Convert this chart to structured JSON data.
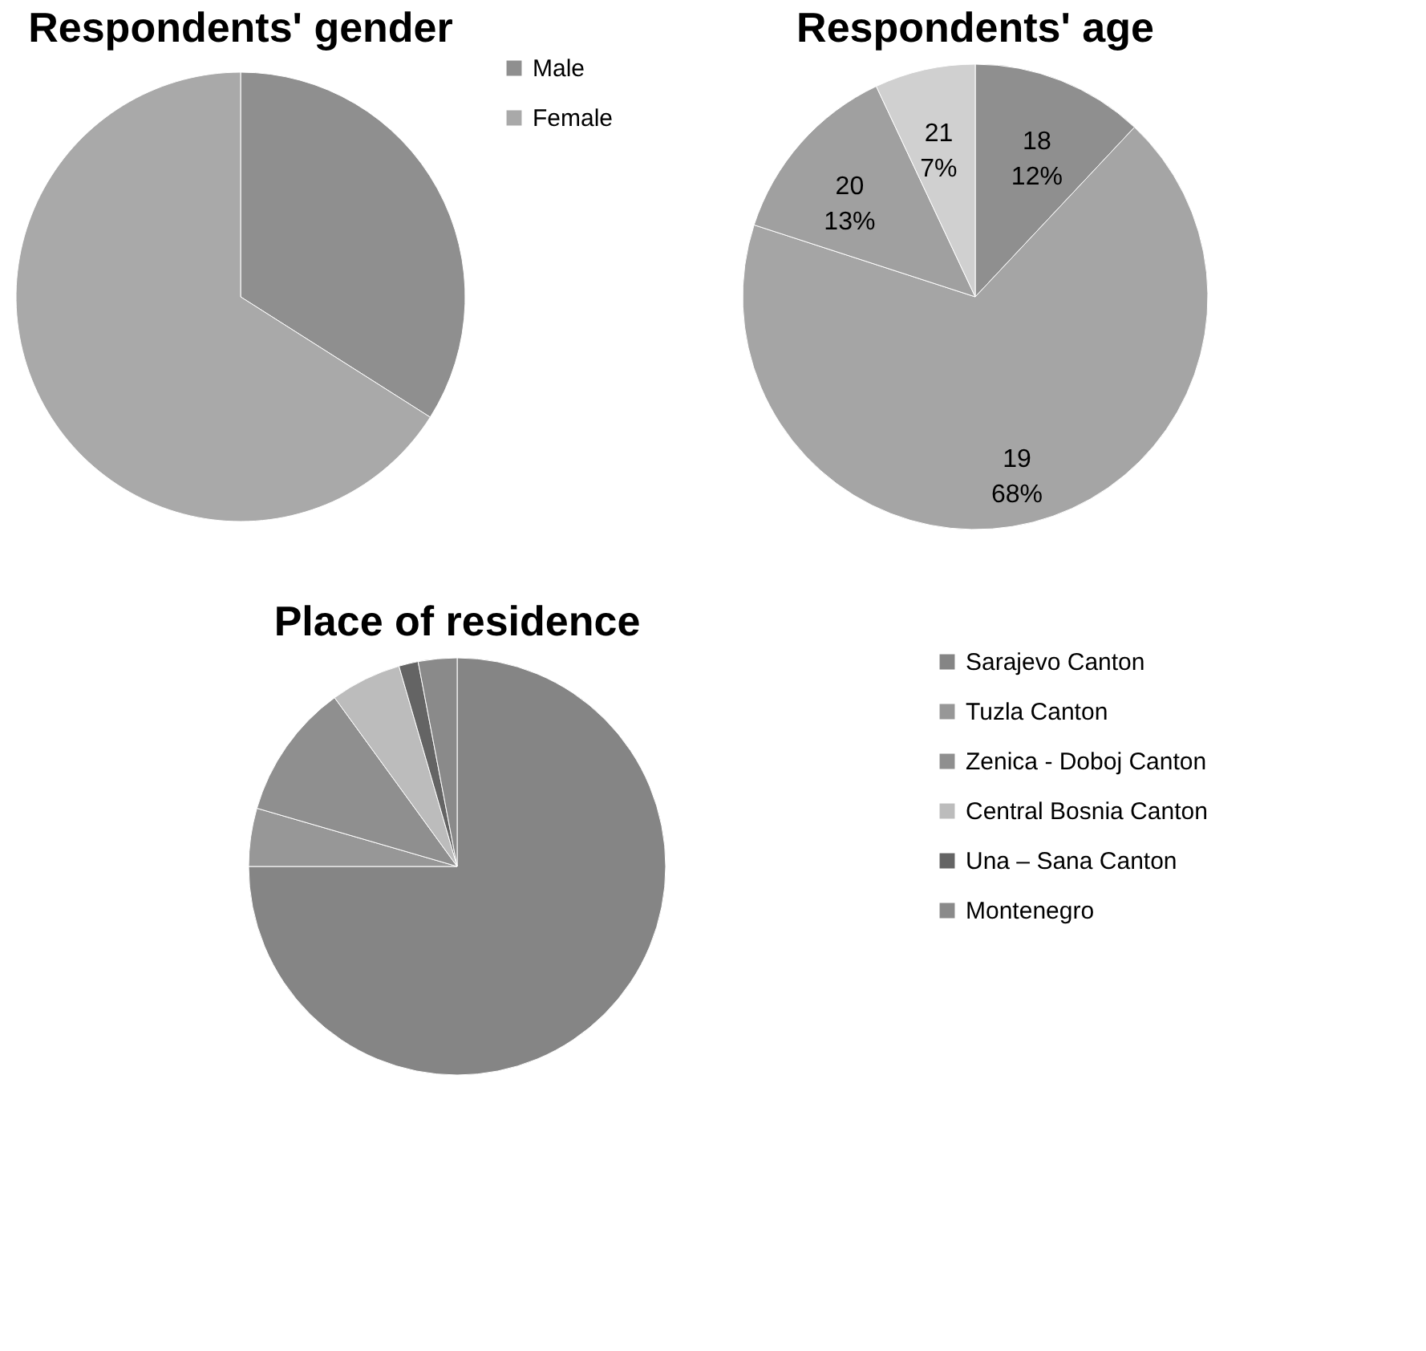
{
  "chart_data": [
    {
      "type": "pie",
      "title": "Respondents' gender",
      "categories": [
        "Male",
        "Female"
      ],
      "values": [
        34,
        66
      ],
      "colors": [
        "#8f8f8f",
        "#a9a9a9"
      ],
      "legend": "right"
    },
    {
      "type": "pie",
      "title": "Respondents' age",
      "categories": [
        "18",
        "19",
        "20",
        "21"
      ],
      "values": [
        12,
        68,
        13,
        7
      ],
      "value_labels": [
        "12%",
        "68%",
        "13%",
        "7%"
      ],
      "colors": [
        "#8f8f8f",
        "#a5a5a5",
        "#a0a0a0",
        "#d0d0d0"
      ]
    },
    {
      "type": "pie",
      "title": "Place of residence",
      "categories": [
        "Sarajevo Canton",
        "Tuzla Canton",
        "Zenica - Doboj Canton",
        "Central Bosnia Canton",
        "Una – Sana Canton",
        "Montenegro"
      ],
      "values": [
        75,
        4.5,
        10.5,
        5.5,
        1.5,
        3
      ],
      "colors": [
        "#858585",
        "#979797",
        "#8f8f8f",
        "#bcbcbc",
        "#646464",
        "#8a8a8a"
      ],
      "legend": "right"
    }
  ]
}
